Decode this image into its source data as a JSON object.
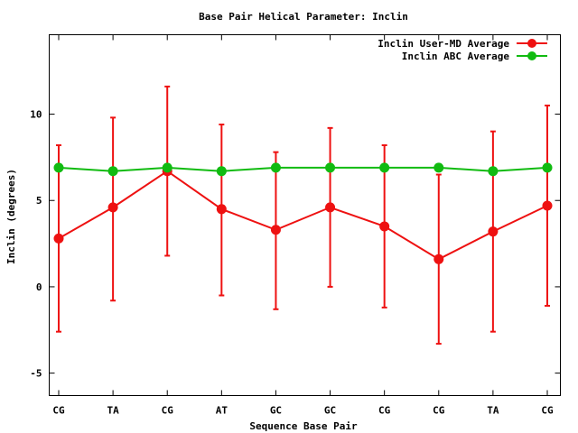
{
  "chart_data": {
    "type": "line",
    "title": "Base Pair Helical Parameter: Inclin",
    "xlabel": "Sequence Base Pair",
    "ylabel": "Inclin (degrees)",
    "categories": [
      "CG",
      "TA",
      "CG",
      "AT",
      "GC",
      "GC",
      "CG",
      "CG",
      "TA",
      "CG"
    ],
    "ylim": [
      -6.3,
      14.6
    ],
    "yticks": [
      -5,
      0,
      5,
      10
    ],
    "legend_position": "top-right",
    "grid": false,
    "series": [
      {
        "name": "Inclin User-MD Average",
        "color": "#ee1111",
        "values": [
          2.8,
          4.6,
          6.7,
          4.5,
          3.3,
          4.6,
          3.5,
          1.6,
          3.2,
          4.7
        ],
        "error_low": [
          -2.6,
          -0.8,
          1.8,
          -0.5,
          -1.3,
          0.0,
          -1.2,
          -3.3,
          -2.6,
          -1.1
        ],
        "error_high": [
          8.2,
          9.8,
          11.6,
          9.4,
          7.8,
          9.2,
          8.2,
          6.5,
          9.0,
          10.5
        ]
      },
      {
        "name": "Inclin ABC Average",
        "color": "#11bb11",
        "values": [
          6.9,
          6.7,
          6.9,
          6.7,
          6.9,
          6.9,
          6.9,
          6.9,
          6.7,
          6.9
        ]
      }
    ]
  }
}
